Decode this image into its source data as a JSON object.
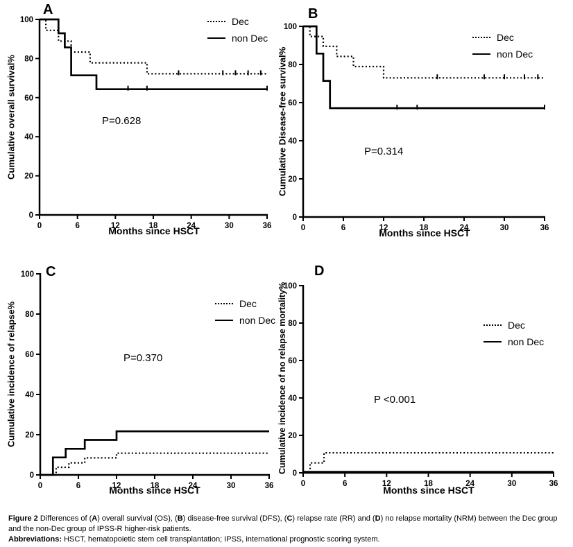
{
  "figure": {
    "colors": {
      "background": "#ffffff",
      "foreground": "#000000"
    },
    "caption": {
      "line1_parts": [
        {
          "text": "Figure 2 ",
          "bold": true
        },
        {
          "text": "Differences of (",
          "bold": false
        },
        {
          "text": "A",
          "bold": true
        },
        {
          "text": ") overall survival (OS), (",
          "bold": false
        },
        {
          "text": "B",
          "bold": true
        },
        {
          "text": ") disease-free survival (DFS), (",
          "bold": false
        },
        {
          "text": "C",
          "bold": true
        },
        {
          "text": ") relapse rate (RR) and (",
          "bold": false
        },
        {
          "text": "D",
          "bold": true
        },
        {
          "text": ") no relapse mortality (NRM) between the Dec group and the non-Dec group of IPSS-R higher-risk patients.",
          "bold": false
        }
      ],
      "line2_parts": [
        {
          "text": "Abbreviations: ",
          "bold": true
        },
        {
          "text": "HSCT, hematopoietic stem cell transplantation; IPSS, international prognostic scoring system.",
          "bold": false
        }
      ]
    }
  },
  "chart_data": [
    {
      "panel": "A",
      "type": "line",
      "step": true,
      "title": "",
      "xlabel": "Months since HSCT",
      "ylabel": "Cumulative overall survival%",
      "xlim": [
        0,
        36
      ],
      "ylim": [
        0,
        100
      ],
      "xticks": [
        0,
        6,
        12,
        18,
        24,
        30,
        36
      ],
      "yticks": [
        0,
        20,
        40,
        60,
        80,
        100
      ],
      "grid": false,
      "p_value": "P=0.628",
      "legend_position": "top-right",
      "series": [
        {
          "name": "Dec",
          "line_style": "dotted",
          "color": "#000000",
          "steps": [
            [
              0,
              100
            ],
            [
              1,
              100
            ],
            [
              1,
              94.4
            ],
            [
              3,
              94.4
            ],
            [
              3,
              88.9
            ],
            [
              5,
              88.9
            ],
            [
              5,
              83.3
            ],
            [
              8,
              83.3
            ],
            [
              8,
              77.8
            ],
            [
              17,
              77.8
            ],
            [
              17,
              72.2
            ],
            [
              36,
              72.2
            ]
          ],
          "censor_marks": [
            [
              22,
              72.2
            ],
            [
              29,
              72.2
            ],
            [
              31,
              72.2
            ],
            [
              33,
              72.2
            ],
            [
              35,
              72.2
            ]
          ]
        },
        {
          "name": "non Dec",
          "line_style": "solid",
          "color": "#000000",
          "steps": [
            [
              0,
              100
            ],
            [
              3,
              100
            ],
            [
              3,
              92.9
            ],
            [
              4,
              92.9
            ],
            [
              4,
              85.7
            ],
            [
              5,
              85.7
            ],
            [
              5,
              71.4
            ],
            [
              9,
              71.4
            ],
            [
              9,
              64.3
            ],
            [
              36,
              64.3
            ]
          ],
          "censor_marks": [
            [
              14,
              64.3
            ],
            [
              17,
              64.3
            ],
            [
              36,
              64.3
            ]
          ]
        }
      ]
    },
    {
      "panel": "B",
      "type": "line",
      "step": true,
      "title": "",
      "xlabel": "Months since HSCT",
      "ylabel": "Cumulative Disease-free survival%",
      "xlim": [
        0,
        36
      ],
      "ylim": [
        0,
        100
      ],
      "xticks": [
        0,
        6,
        12,
        18,
        24,
        30,
        36
      ],
      "yticks": [
        0,
        20,
        40,
        60,
        80,
        100
      ],
      "grid": false,
      "p_value": "P=0.314",
      "legend_position": "top-right",
      "series": [
        {
          "name": "Dec",
          "line_style": "dotted",
          "color": "#000000",
          "steps": [
            [
              0,
              100
            ],
            [
              1,
              100
            ],
            [
              1,
              94.7
            ],
            [
              3,
              94.7
            ],
            [
              3,
              89.5
            ],
            [
              5,
              89.5
            ],
            [
              5,
              84.2
            ],
            [
              7.5,
              84.2
            ],
            [
              7.5,
              78.9
            ],
            [
              12,
              78.9
            ],
            [
              12,
              73.0
            ],
            [
              36,
              73.0
            ]
          ],
          "censor_marks": [
            [
              20,
              73.0
            ],
            [
              27,
              73.0
            ],
            [
              30,
              73.0
            ],
            [
              33,
              73.0
            ],
            [
              35,
              73.0
            ]
          ]
        },
        {
          "name": "non Dec",
          "line_style": "solid",
          "color": "#000000",
          "steps": [
            [
              0,
              100
            ],
            [
              2,
              100
            ],
            [
              2,
              85.7
            ],
            [
              3,
              85.7
            ],
            [
              3,
              71.4
            ],
            [
              4,
              71.4
            ],
            [
              4,
              57.1
            ],
            [
              36,
              57.1
            ]
          ],
          "censor_marks": [
            [
              14,
              57.1
            ],
            [
              17,
              57.1
            ],
            [
              36,
              57.1
            ]
          ]
        }
      ]
    },
    {
      "panel": "C",
      "type": "line",
      "step": true,
      "title": "",
      "xlabel": "Months since HSCT",
      "ylabel": "Cumulative incidence of relapse%",
      "xlim": [
        0,
        36
      ],
      "ylim": [
        0,
        100
      ],
      "xticks": [
        0,
        6,
        12,
        18,
        24,
        30,
        36
      ],
      "yticks": [
        0,
        20,
        40,
        60,
        80,
        100
      ],
      "grid": false,
      "p_value": "P=0.370",
      "legend_position": "top-right",
      "series": [
        {
          "name": "Dec",
          "line_style": "dotted",
          "color": "#000000",
          "steps": [
            [
              0,
              0
            ],
            [
              2.5,
              0
            ],
            [
              2.5,
              3.8
            ],
            [
              4.5,
              3.8
            ],
            [
              4.5,
              6.0
            ],
            [
              7,
              6.0
            ],
            [
              7,
              8.5
            ],
            [
              12,
              8.5
            ],
            [
              12,
              10.8
            ],
            [
              36,
              10.8
            ]
          ],
          "censor_marks": []
        },
        {
          "name": "non Dec",
          "line_style": "solid",
          "color": "#000000",
          "steps": [
            [
              0,
              0
            ],
            [
              2,
              0
            ],
            [
              2,
              8.7
            ],
            [
              4,
              8.7
            ],
            [
              4,
              13.0
            ],
            [
              7,
              13.0
            ],
            [
              7,
              17.4
            ],
            [
              12,
              17.4
            ],
            [
              12,
              21.7
            ],
            [
              36,
              21.7
            ]
          ],
          "censor_marks": []
        }
      ]
    },
    {
      "panel": "D",
      "type": "line",
      "step": true,
      "title": "",
      "xlabel": "Months since HSCT",
      "ylabel": "Cumulative incidence of no relapse mortality%",
      "xlim": [
        0,
        36
      ],
      "ylim": [
        0,
        100
      ],
      "xticks": [
        0,
        6,
        12,
        18,
        24,
        30,
        36
      ],
      "yticks": [
        0,
        20,
        40,
        60,
        80,
        100
      ],
      "grid": false,
      "p_value": "P <0.001",
      "legend_position": "top-right",
      "series": [
        {
          "name": "Dec",
          "line_style": "dotted",
          "color": "#000000",
          "steps": [
            [
              0,
              0
            ],
            [
              1,
              0
            ],
            [
              1,
              5.3
            ],
            [
              3,
              5.3
            ],
            [
              3,
              10.7
            ],
            [
              36,
              10.7
            ]
          ],
          "censor_marks": []
        },
        {
          "name": "non Dec",
          "line_style": "solid",
          "color": "#000000",
          "steps": [
            [
              0,
              0.5
            ],
            [
              36,
              0.5
            ]
          ],
          "censor_marks": []
        }
      ]
    }
  ]
}
